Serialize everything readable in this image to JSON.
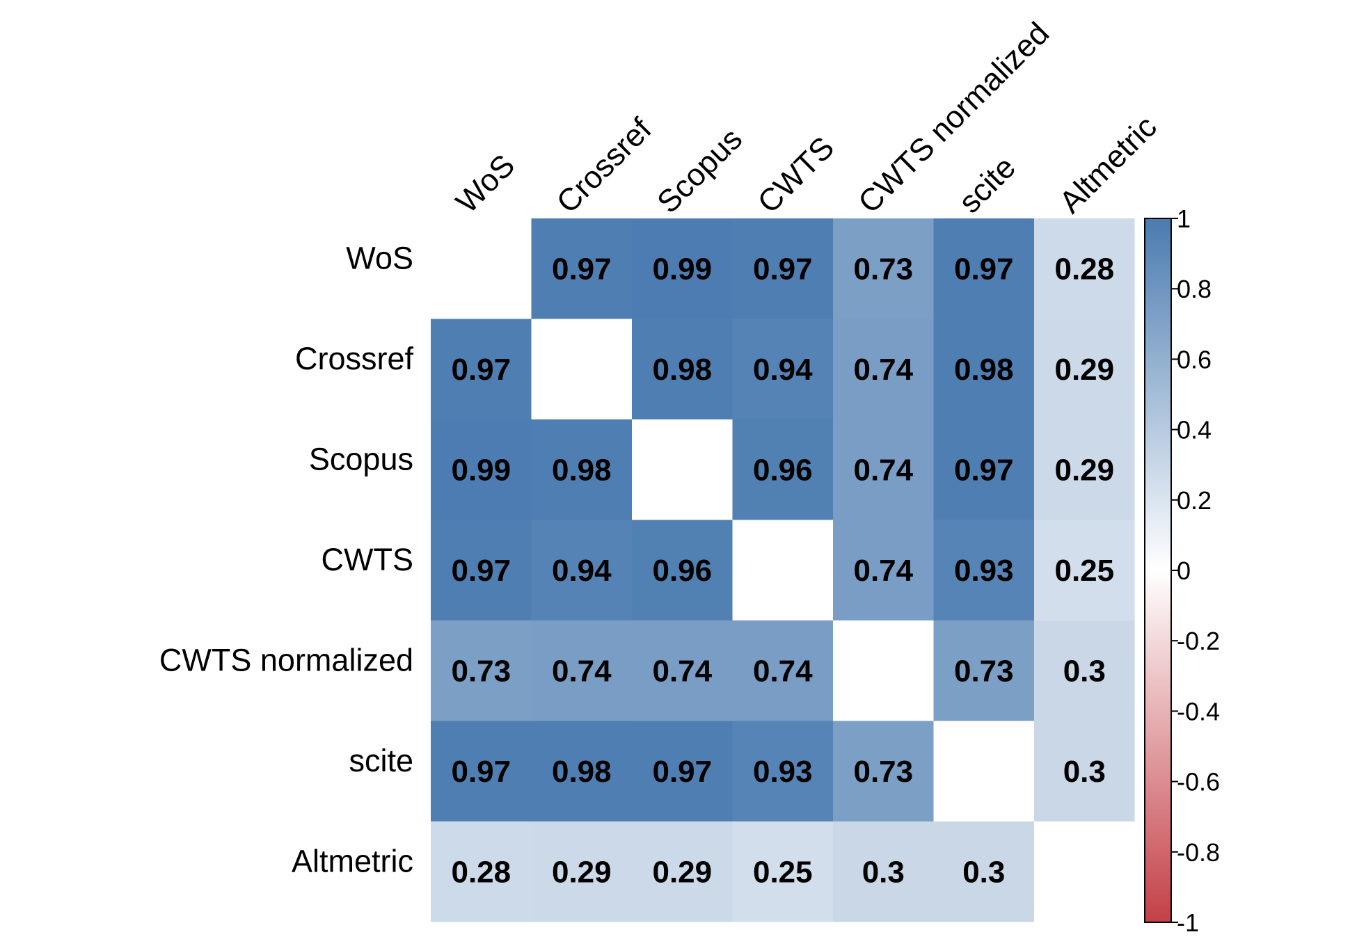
{
  "chart_data": {
    "type": "heatmap",
    "variables": [
      "WoS",
      "Crossref",
      "Scopus",
      "CWTS",
      "CWTS normalized",
      "scite",
      "Altmetric"
    ],
    "matrix": [
      [
        null,
        0.97,
        0.99,
        0.97,
        0.73,
        0.97,
        0.28
      ],
      [
        0.97,
        null,
        0.98,
        0.94,
        0.74,
        0.98,
        0.29
      ],
      [
        0.99,
        0.98,
        null,
        0.96,
        0.74,
        0.97,
        0.29
      ],
      [
        0.97,
        0.94,
        0.96,
        null,
        0.74,
        0.93,
        0.25
      ],
      [
        0.73,
        0.74,
        0.74,
        0.74,
        null,
        0.73,
        0.3
      ],
      [
        0.97,
        0.98,
        0.97,
        0.93,
        0.73,
        null,
        0.3
      ],
      [
        0.28,
        0.29,
        0.29,
        0.25,
        0.3,
        0.3,
        null
      ]
    ],
    "labels": [
      [
        "",
        "0.97",
        "0.99",
        "0.97",
        "0.73",
        "0.97",
        "0.28"
      ],
      [
        "0.97",
        "",
        "0.98",
        "0.94",
        "0.74",
        "0.98",
        "0.29"
      ],
      [
        "0.99",
        "0.98",
        "",
        "0.96",
        "0.74",
        "0.97",
        "0.29"
      ],
      [
        "0.97",
        "0.94",
        "0.96",
        "",
        "0.74",
        "0.93",
        "0.25"
      ],
      [
        "0.73",
        "0.74",
        "0.74",
        "0.74",
        "",
        "0.73",
        "0.3"
      ],
      [
        "0.97",
        "0.98",
        "0.97",
        "0.93",
        "0.73",
        "",
        "0.3"
      ],
      [
        "0.28",
        "0.29",
        "0.29",
        "0.25",
        "0.3",
        "0.3",
        ""
      ]
    ],
    "colorbar": {
      "range": [
        -1,
        1
      ],
      "ticks": [
        1,
        0.8,
        0.6,
        0.4,
        0.2,
        0,
        -0.2,
        -0.4,
        -0.6,
        -0.8,
        -1
      ],
      "tick_labels": [
        "1",
        "0.8",
        "0.6",
        "0.4",
        "0.2",
        "0",
        "-0.2",
        "-0.4",
        "-0.6",
        "-0.8",
        "-1"
      ],
      "colors": {
        "neg": "#C34047",
        "mid": "#FFFFFF",
        "pos": "#4A7BB0"
      }
    },
    "diagonal_color": "#FFFFFF",
    "grid": false,
    "legend": "right"
  }
}
